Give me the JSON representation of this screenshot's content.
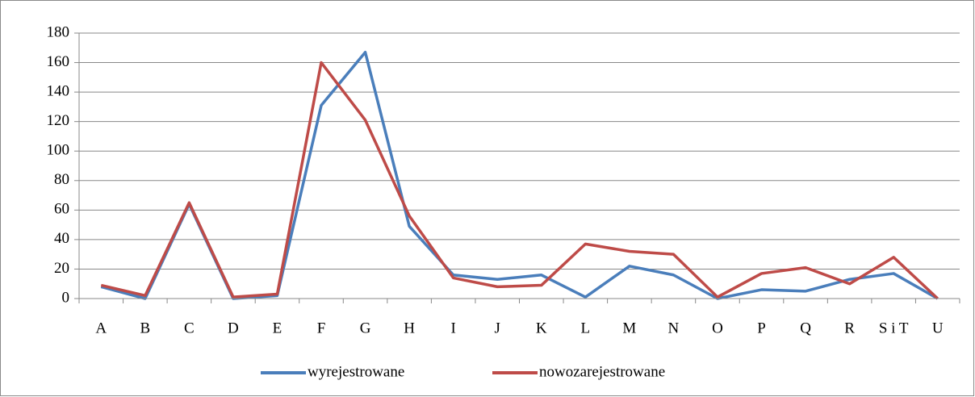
{
  "chart_data": {
    "type": "line",
    "categories": [
      "A",
      "B",
      "C",
      "D",
      "E",
      "F",
      "G",
      "H",
      "I",
      "J",
      "K",
      "L",
      "M",
      "N",
      "O",
      "P",
      "Q",
      "R",
      "S i T",
      "U"
    ],
    "series": [
      {
        "name": "wyrejestrowane",
        "color": "#4a7ebb",
        "values": [
          8,
          0,
          64,
          0,
          2,
          131,
          167,
          49,
          16,
          13,
          16,
          1,
          22,
          16,
          0,
          6,
          5,
          13,
          17,
          0
        ]
      },
      {
        "name": "nowozarejestrowane",
        "color": "#be4b48",
        "values": [
          9,
          2,
          65,
          1,
          3,
          160,
          121,
          56,
          14,
          8,
          9,
          37,
          32,
          30,
          1,
          17,
          21,
          10,
          28,
          0
        ]
      }
    ],
    "ylim": [
      0,
      180
    ],
    "yticks": [
      0,
      20,
      40,
      60,
      80,
      100,
      120,
      140,
      160,
      180
    ],
    "grid": true,
    "legend": "bottom"
  }
}
